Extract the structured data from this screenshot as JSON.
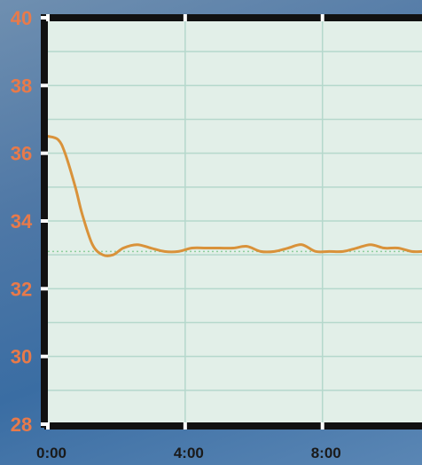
{
  "chart_data": {
    "type": "line",
    "xlabel": "",
    "ylabel": "",
    "xlim": [
      0,
      10.9
    ],
    "ylim": [
      28,
      40
    ],
    "xticks": [
      0,
      4,
      8
    ],
    "xtick_labels": [
      "0:00",
      "4:00",
      "8:00"
    ],
    "yticks": [
      28,
      30,
      32,
      34,
      36,
      38,
      40
    ],
    "ytick_labels": [
      "28",
      "30",
      "32",
      "34",
      "36",
      "38",
      "40"
    ],
    "grid": true,
    "reference_line": 33.1,
    "colors": {
      "line": "#d9923a",
      "tick_labels": "#e87a4a",
      "plot_bg": "#e2efe8",
      "grid": "#b5d8cc",
      "frame": "#111111"
    },
    "series": [
      {
        "x": [
          0,
          0.3,
          0.5,
          0.8,
          1.0,
          1.3,
          1.6,
          1.9,
          2.2,
          2.6,
          3.0,
          3.4,
          3.8,
          4.2,
          4.6,
          5.0,
          5.4,
          5.8,
          6.2,
          6.6,
          7.0,
          7.4,
          7.8,
          8.2,
          8.6,
          9.0,
          9.4,
          9.8,
          10.2,
          10.6,
          10.9
        ],
        "values": [
          36.5,
          36.4,
          36.0,
          35.0,
          34.2,
          33.3,
          33.0,
          33.0,
          33.2,
          33.3,
          33.2,
          33.1,
          33.1,
          33.2,
          33.2,
          33.2,
          33.2,
          33.25,
          33.1,
          33.1,
          33.2,
          33.3,
          33.1,
          33.1,
          33.1,
          33.2,
          33.3,
          33.2,
          33.2,
          33.1,
          33.1
        ]
      }
    ]
  }
}
